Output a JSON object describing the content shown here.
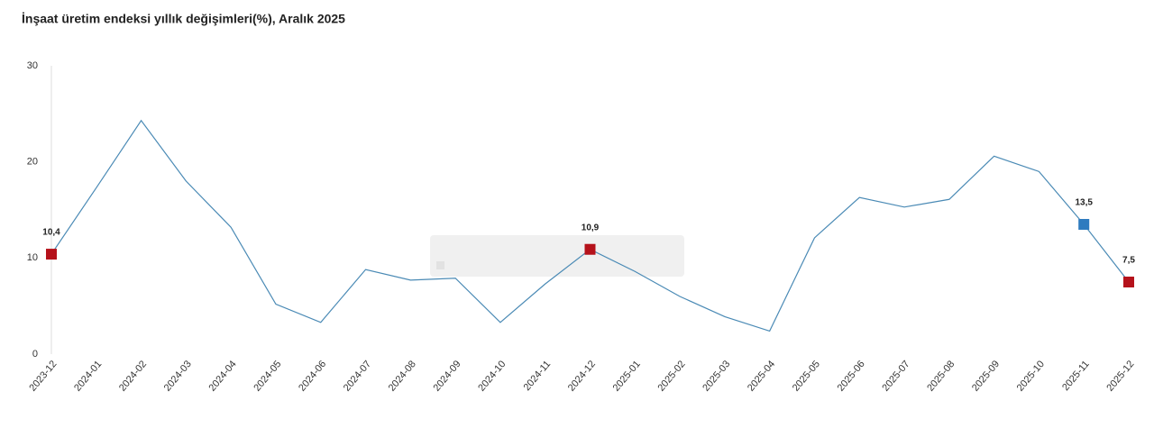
{
  "chart_data": {
    "type": "line",
    "title": "İnşaat üretim endeksi yıllık değişimleri(%), Aralık 2025",
    "categories": [
      "2023-12",
      "2024-01",
      "2024-02",
      "2024-03",
      "2024-04",
      "2024-05",
      "2024-06",
      "2024-07",
      "2024-08",
      "2024-09",
      "2024-10",
      "2024-11",
      "2024-12",
      "2025-01",
      "2025-02",
      "2025-03",
      "2025-04",
      "2025-05",
      "2025-06",
      "2025-07",
      "2025-08",
      "2025-09",
      "2025-10",
      "2025-11",
      "2025-12"
    ],
    "series": [
      {
        "color": "#4a8ab5",
        "values": [
          10.4,
          17.3,
          24.3,
          18.0,
          13.2,
          5.2,
          3.3,
          8.8,
          7.7,
          7.9,
          3.3,
          7.3,
          10.9,
          8.6,
          6.0,
          3.9,
          2.4,
          12.1,
          16.3,
          15.3,
          16.1,
          20.6,
          19.0,
          13.5,
          7.5
        ],
        "value_labels": [
          "10,4",
          null,
          null,
          null,
          null,
          null,
          null,
          null,
          null,
          null,
          null,
          null,
          "10,9",
          null,
          null,
          null,
          null,
          null,
          null,
          null,
          null,
          null,
          null,
          "13,5",
          "7,5"
        ],
        "marker_colors": [
          "#b5121b",
          null,
          null,
          null,
          null,
          null,
          null,
          null,
          null,
          null,
          null,
          null,
          "#b5121b",
          null,
          null,
          null,
          null,
          null,
          null,
          null,
          null,
          null,
          null,
          "#2e7bbf",
          "#b5121b"
        ]
      }
    ],
    "ylim": [
      0,
      30
    ],
    "yticks": [
      0,
      10,
      20,
      30
    ],
    "grid": false
  }
}
